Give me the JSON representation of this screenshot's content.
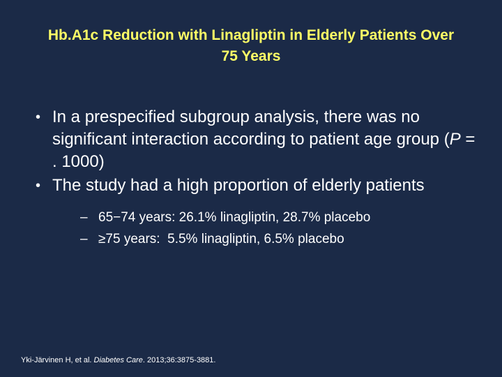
{
  "title": "Hb.A1c Reduction with Linagliptin in Elderly Patients Over 75 Years",
  "bullets": [
    {
      "parts": [
        "In a prespecified subgroup analysis, there was no significant interaction according to patient age group (",
        "P",
        " = . 1000)"
      ]
    },
    {
      "parts": [
        "The study had a high proportion of elderly patients"
      ],
      "sub_bullets": [
        "65−74 years: 26.1% linagliptin, 28.7% placebo",
        "≥75 years:  5.5% linagliptin, 6.5% placebo"
      ]
    }
  ],
  "citation": {
    "parts": [
      "Yki-Järvinen H, et al. ",
      "Diabetes Care",
      ". 2013;36:3875-3881."
    ]
  }
}
